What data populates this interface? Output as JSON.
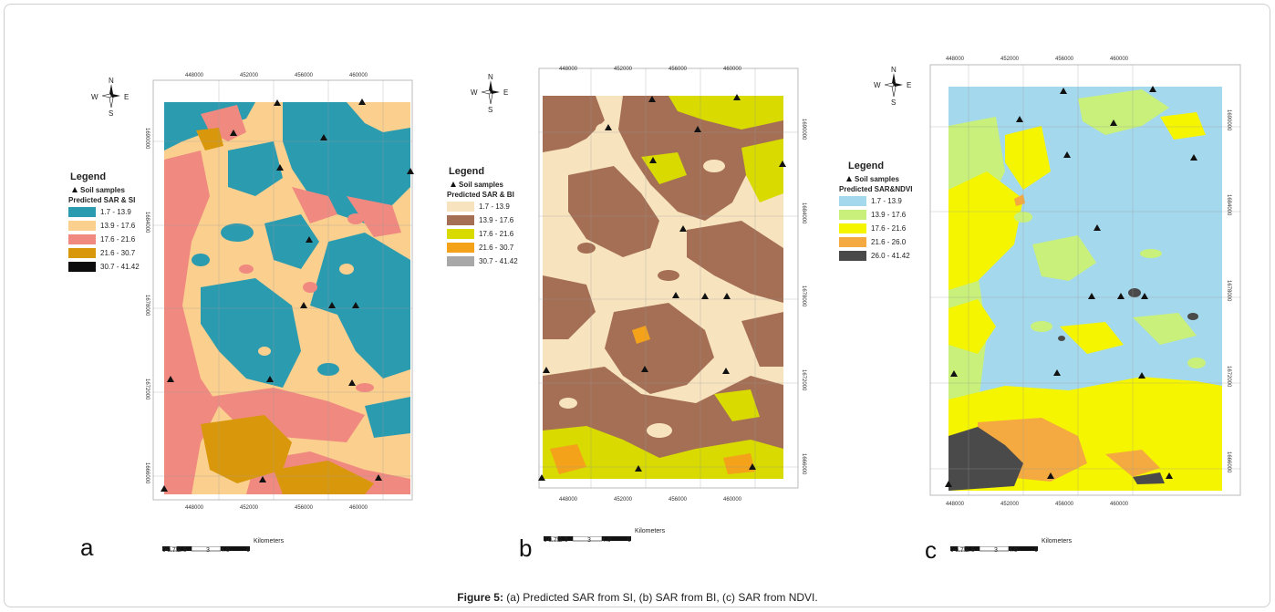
{
  "figure": {
    "caption_label": "Figure 5:",
    "caption_text": " (a) Predicted SAR from SI, (b) SAR from BI, (c) SAR from NDVI."
  },
  "common": {
    "legend_title": "Legend",
    "samples_label": "Soil samples",
    "compass": {
      "n": "N",
      "s": "S",
      "e": "E",
      "w": "W"
    },
    "scale_unit": "Kilometers",
    "scale_ticks": [
      "0",
      "0.75",
      "1.5",
      "3",
      "4.5",
      "6"
    ],
    "x_ticks": [
      "448000",
      "452000",
      "456000",
      "460000"
    ],
    "y_ticks": [
      "1690000",
      "1684000",
      "1678000",
      "1672000",
      "1666000"
    ]
  },
  "maps": [
    {
      "letter": "a",
      "subtitle": "Predicted SAR & SI",
      "classes": [
        {
          "range": "1.7 - 13.9",
          "color": "#2b9bb0"
        },
        {
          "range": "13.9 - 17.6",
          "color": "#fbcf8e"
        },
        {
          "range": "17.6 - 21.6",
          "color": "#f08a80"
        },
        {
          "range": "21.6 - 30.7",
          "color": "#d9970c"
        },
        {
          "range": "30.7 - 41.42",
          "color": "#0c0c0c"
        }
      ]
    },
    {
      "letter": "b",
      "subtitle": "Predicted SAR & BI",
      "classes": [
        {
          "range": "1.7 - 13.9",
          "color": "#f8e3bf"
        },
        {
          "range": "13.9 - 17.6",
          "color": "#a46f55"
        },
        {
          "range": "17.6 - 21.6",
          "color": "#d8da00"
        },
        {
          "range": "21.6 - 30.7",
          "color": "#f4a21a"
        },
        {
          "range": "30.7 - 41.42",
          "color": "#a8a8a8"
        }
      ]
    },
    {
      "letter": "c",
      "subtitle": "Predicted SAR&NDVI",
      "classes": [
        {
          "range": "1.7 - 13.9",
          "color": "#a4d8ec"
        },
        {
          "range": "13.9 - 17.6",
          "color": "#c8f07a"
        },
        {
          "range": "17.6 - 21.6",
          "color": "#f5f500"
        },
        {
          "range": "21.6 - 26.0",
          "color": "#f4aa40"
        },
        {
          "range": "26.0 - 41.42",
          "color": "#4a4a4a"
        }
      ]
    }
  ]
}
